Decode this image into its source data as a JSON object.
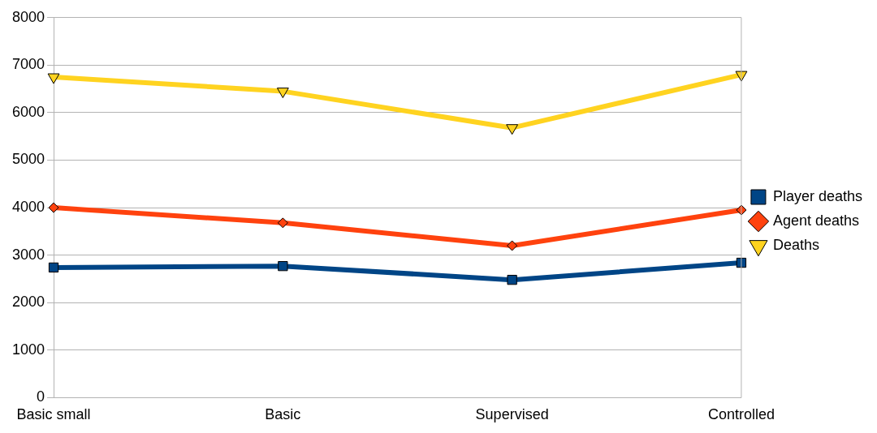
{
  "chart_data": {
    "type": "line",
    "categories": [
      "Basic small",
      "Basic",
      "Supervised",
      "Controlled"
    ],
    "series": [
      {
        "name": "Player deaths",
        "color": "#004586",
        "marker": "square",
        "values": [
          2740,
          2770,
          2480,
          2840
        ]
      },
      {
        "name": "Agent deaths",
        "color": "#ff420e",
        "marker": "diamond",
        "values": [
          4000,
          3680,
          3200,
          3950
        ]
      },
      {
        "name": "Deaths",
        "color": "#ffd320",
        "marker": "triangle",
        "values": [
          6750,
          6450,
          5680,
          6800
        ]
      }
    ],
    "ylim": [
      0,
      8000
    ],
    "yticks": [
      0,
      1000,
      2000,
      3000,
      4000,
      5000,
      6000,
      7000,
      8000
    ],
    "grid": "y",
    "legend": "right",
    "line_style": "solid"
  }
}
